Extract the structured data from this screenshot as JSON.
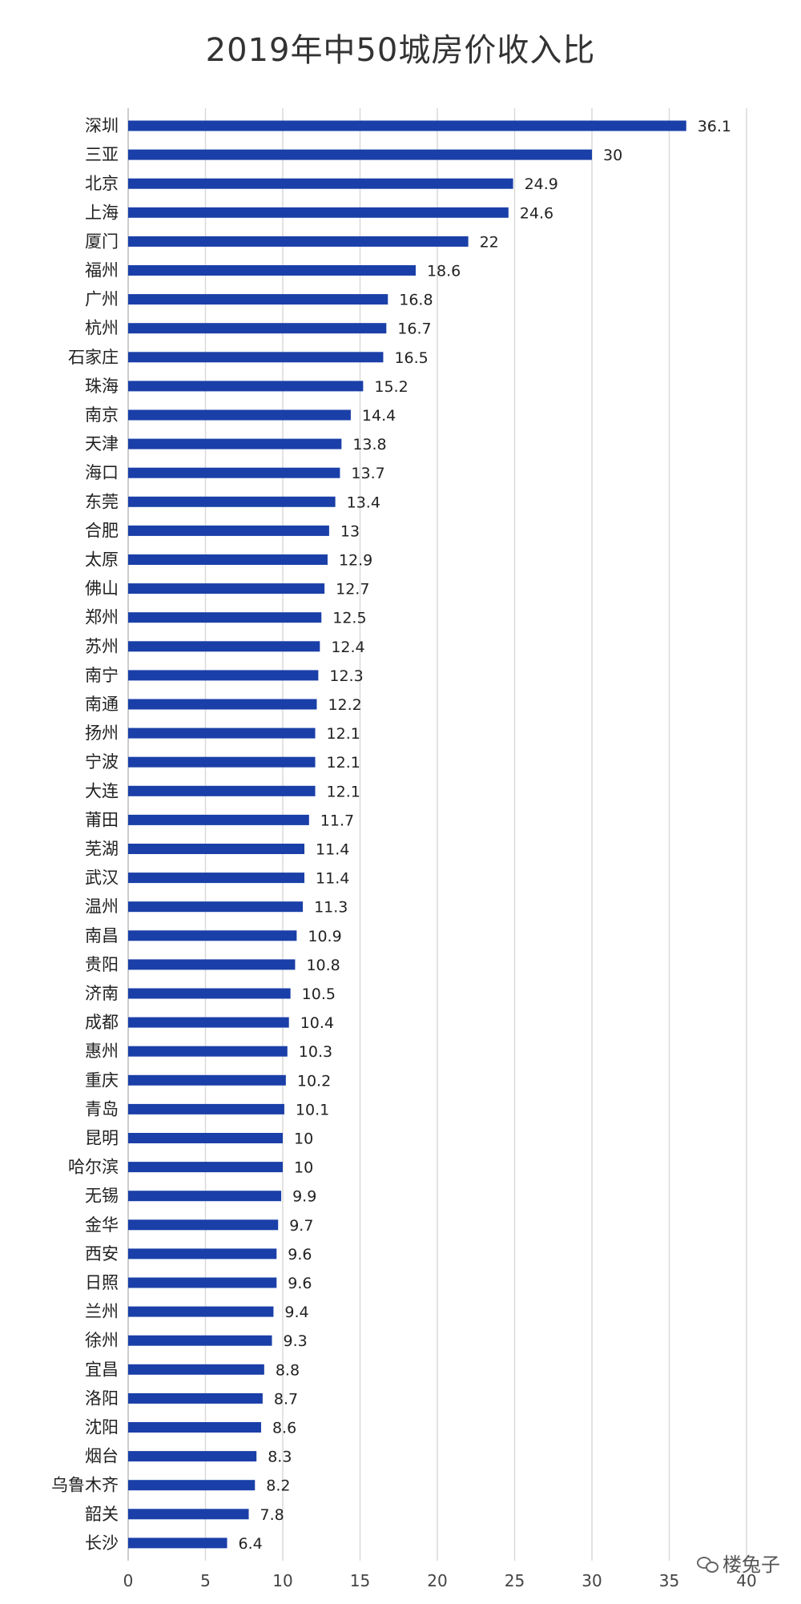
{
  "chart_data": {
    "type": "bar",
    "orientation": "horizontal",
    "title": "2019年中50城房价收入比",
    "categories": [
      "深圳",
      "三亚",
      "北京",
      "上海",
      "厦门",
      "福州",
      "广州",
      "杭州",
      "石家庄",
      "珠海",
      "南京",
      "天津",
      "海口",
      "东莞",
      "合肥",
      "太原",
      "佛山",
      "郑州",
      "苏州",
      "南宁",
      "南通",
      "扬州",
      "宁波",
      "大连",
      "莆田",
      "芜湖",
      "武汉",
      "温州",
      "南昌",
      "贵阳",
      "济南",
      "成都",
      "惠州",
      "重庆",
      "青岛",
      "昆明",
      "哈尔滨",
      "无锡",
      "金华",
      "西安",
      "日照",
      "兰州",
      "徐州",
      "宜昌",
      "洛阳",
      "沈阳",
      "烟台",
      "乌鲁木齐",
      "韶关",
      "长沙"
    ],
    "values": [
      36.1,
      30,
      24.9,
      24.6,
      22,
      18.6,
      16.8,
      16.7,
      16.5,
      15.2,
      14.4,
      13.8,
      13.7,
      13.4,
      13,
      12.9,
      12.7,
      12.5,
      12.4,
      12.3,
      12.2,
      12.1,
      12.1,
      12.1,
      11.7,
      11.4,
      11.4,
      11.3,
      10.9,
      10.8,
      10.5,
      10.4,
      10.3,
      10.2,
      10.1,
      10,
      10,
      9.9,
      9.7,
      9.6,
      9.6,
      9.4,
      9.3,
      8.8,
      8.7,
      8.6,
      8.3,
      8.2,
      7.8,
      6.4
    ],
    "xlim": [
      0,
      40
    ],
    "xticks": [
      0,
      5,
      10,
      15,
      20,
      25,
      30,
      35,
      40
    ],
    "xlabel": "",
    "ylabel": "",
    "grid": "vertical",
    "legend": "none",
    "bar_color": "#1a3fa8"
  },
  "watermark": {
    "text": "楼兔子",
    "icon": "wechat-icon"
  }
}
